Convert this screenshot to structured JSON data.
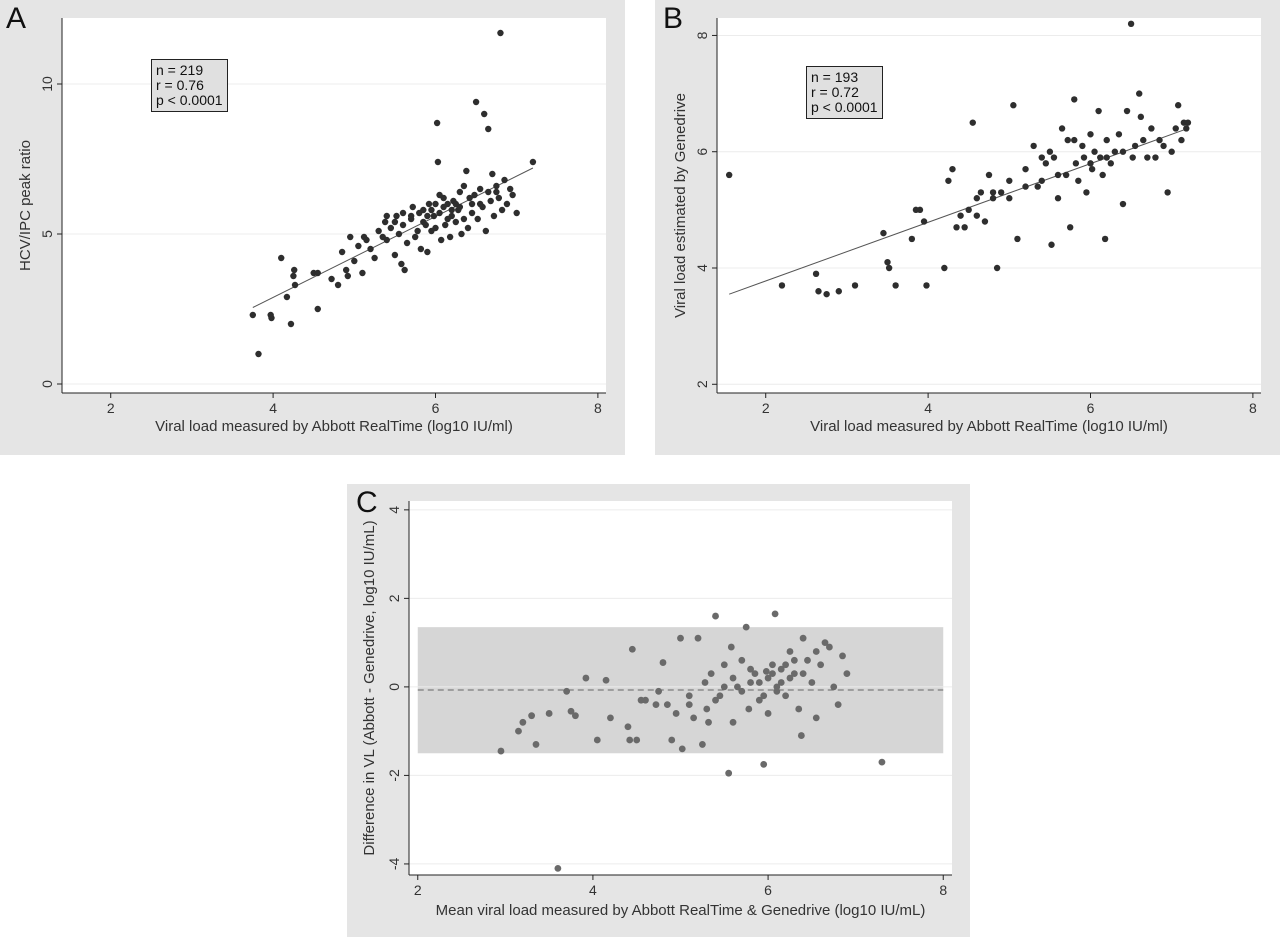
{
  "chart_data": [
    {
      "panel": "A",
      "type": "scatter",
      "title": "",
      "xlabel": "Viral load measured by Abbott RealTime (log10 IU/ml)",
      "ylabel": "HCV/IPC peak ratio",
      "xlim": [
        1.4,
        8.1
      ],
      "ylim": [
        -0.3,
        12.2
      ],
      "xticks": [
        2,
        4,
        6,
        8
      ],
      "yticks": [
        0,
        5,
        10
      ],
      "grid": true,
      "stats": [
        "n = 219",
        "r = 0.76",
        "p < 0.0001"
      ],
      "fit_line": {
        "x": [
          3.75,
          7.2
        ],
        "y": [
          2.55,
          7.2
        ]
      },
      "points": [
        [
          3.75,
          2.3
        ],
        [
          3.82,
          1.0
        ],
        [
          3.97,
          2.3
        ],
        [
          3.98,
          2.2
        ],
        [
          4.1,
          4.2
        ],
        [
          4.17,
          2.9
        ],
        [
          4.22,
          2.0
        ],
        [
          4.25,
          3.6
        ],
        [
          4.26,
          3.8
        ],
        [
          4.27,
          3.3
        ],
        [
          4.5,
          3.7
        ],
        [
          4.55,
          3.7
        ],
        [
          4.55,
          2.5
        ],
        [
          4.72,
          3.5
        ],
        [
          4.8,
          3.3
        ],
        [
          4.85,
          4.4
        ],
        [
          4.9,
          3.8
        ],
        [
          4.92,
          3.6
        ],
        [
          4.95,
          4.9
        ],
        [
          5.0,
          4.1
        ],
        [
          5.05,
          4.6
        ],
        [
          5.1,
          3.7
        ],
        [
          5.12,
          4.9
        ],
        [
          5.15,
          4.8
        ],
        [
          5.2,
          4.5
        ],
        [
          5.25,
          4.2
        ],
        [
          5.3,
          5.1
        ],
        [
          5.35,
          4.9
        ],
        [
          5.38,
          5.4
        ],
        [
          5.4,
          4.8
        ],
        [
          5.45,
          5.2
        ],
        [
          5.5,
          4.3
        ],
        [
          5.52,
          5.6
        ],
        [
          5.55,
          5.0
        ],
        [
          5.58,
          4.0
        ],
        [
          5.6,
          5.3
        ],
        [
          5.62,
          3.8
        ],
        [
          5.65,
          4.7
        ],
        [
          5.7,
          5.5
        ],
        [
          5.72,
          5.9
        ],
        [
          5.75,
          4.9
        ],
        [
          5.78,
          5.1
        ],
        [
          5.8,
          5.7
        ],
        [
          5.82,
          4.5
        ],
        [
          5.85,
          5.8
        ],
        [
          5.88,
          5.3
        ],
        [
          5.9,
          4.4
        ],
        [
          5.92,
          6.0
        ],
        [
          5.95,
          5.1
        ],
        [
          5.98,
          5.6
        ],
        [
          6.0,
          5.2
        ],
        [
          6.02,
          8.7
        ],
        [
          6.03,
          7.4
        ],
        [
          6.05,
          5.7
        ],
        [
          6.07,
          4.8
        ],
        [
          6.1,
          5.9
        ],
        [
          6.12,
          5.3
        ],
        [
          6.15,
          6.0
        ],
        [
          6.18,
          4.9
        ],
        [
          6.2,
          5.6
        ],
        [
          6.22,
          6.1
        ],
        [
          6.25,
          5.4
        ],
        [
          6.28,
          5.8
        ],
        [
          6.3,
          6.4
        ],
        [
          6.32,
          5.0
        ],
        [
          6.35,
          6.6
        ],
        [
          6.38,
          7.1
        ],
        [
          6.4,
          5.2
        ],
        [
          6.42,
          6.2
        ],
        [
          6.45,
          5.7
        ],
        [
          6.48,
          6.3
        ],
        [
          6.5,
          9.4
        ],
        [
          6.52,
          5.5
        ],
        [
          6.55,
          6.5
        ],
        [
          6.58,
          5.9
        ],
        [
          6.6,
          9.0
        ],
        [
          6.62,
          5.1
        ],
        [
          6.65,
          8.5
        ],
        [
          6.68,
          6.1
        ],
        [
          6.7,
          7.0
        ],
        [
          6.72,
          5.6
        ],
        [
          6.75,
          6.6
        ],
        [
          6.78,
          6.2
        ],
        [
          6.8,
          11.7
        ],
        [
          6.82,
          5.8
        ],
        [
          6.85,
          6.8
        ],
        [
          6.88,
          6.0
        ],
        [
          6.92,
          6.5
        ],
        [
          6.95,
          6.3
        ],
        [
          7.0,
          5.7
        ],
        [
          7.2,
          7.4
        ],
        [
          5.9,
          5.6
        ],
        [
          6.0,
          6.0
        ],
        [
          6.1,
          6.2
        ],
        [
          6.2,
          5.8
        ],
        [
          6.3,
          5.9
        ],
        [
          5.7,
          5.6
        ],
        [
          5.6,
          5.7
        ],
        [
          5.5,
          5.4
        ],
        [
          5.4,
          5.6
        ],
        [
          6.05,
          6.3
        ],
        [
          6.15,
          5.5
        ],
        [
          6.25,
          6.0
        ],
        [
          6.35,
          5.5
        ],
        [
          5.85,
          5.4
        ],
        [
          5.95,
          5.8
        ],
        [
          6.45,
          6.0
        ],
        [
          6.55,
          6.0
        ],
        [
          6.65,
          6.4
        ],
        [
          6.75,
          6.4
        ]
      ]
    },
    {
      "panel": "B",
      "type": "scatter",
      "title": "",
      "xlabel": "Viral load measured by Abbott RealTime (log10 IU/ml)",
      "ylabel": "Viral load estimated by Genedrive",
      "xlim": [
        1.4,
        8.1
      ],
      "ylim": [
        1.85,
        8.3
      ],
      "xticks": [
        2,
        4,
        6,
        8
      ],
      "yticks": [
        2,
        4,
        6,
        8
      ],
      "grid": true,
      "stats": [
        "n = 193",
        "r = 0.72",
        "p < 0.0001"
      ],
      "fit_line": {
        "x": [
          1.55,
          7.2
        ],
        "y": [
          3.55,
          6.4
        ]
      },
      "points": [
        [
          1.55,
          5.6
        ],
        [
          2.2,
          3.7
        ],
        [
          2.62,
          3.9
        ],
        [
          2.65,
          3.6
        ],
        [
          2.75,
          3.55
        ],
        [
          2.9,
          3.6
        ],
        [
          3.1,
          3.7
        ],
        [
          3.45,
          4.6
        ],
        [
          3.5,
          4.1
        ],
        [
          3.52,
          4.0
        ],
        [
          3.6,
          3.7
        ],
        [
          3.8,
          4.5
        ],
        [
          3.85,
          5.0
        ],
        [
          3.9,
          5.0
        ],
        [
          3.95,
          4.8
        ],
        [
          3.98,
          3.7
        ],
        [
          4.2,
          4.0
        ],
        [
          4.25,
          5.5
        ],
        [
          4.3,
          5.7
        ],
        [
          4.35,
          4.7
        ],
        [
          4.4,
          4.9
        ],
        [
          4.45,
          4.7
        ],
        [
          4.5,
          5.0
        ],
        [
          4.55,
          6.5
        ],
        [
          4.6,
          5.2
        ],
        [
          4.65,
          5.3
        ],
        [
          4.7,
          4.8
        ],
        [
          4.75,
          5.6
        ],
        [
          4.8,
          5.2
        ],
        [
          4.85,
          4.0
        ],
        [
          4.9,
          5.3
        ],
        [
          5.0,
          5.2
        ],
        [
          5.05,
          6.8
        ],
        [
          5.1,
          4.5
        ],
        [
          5.2,
          5.7
        ],
        [
          5.3,
          6.1
        ],
        [
          5.35,
          5.4
        ],
        [
          5.4,
          5.5
        ],
        [
          5.45,
          5.8
        ],
        [
          5.5,
          6.0
        ],
        [
          5.52,
          4.4
        ],
        [
          5.55,
          5.9
        ],
        [
          5.6,
          5.2
        ],
        [
          5.65,
          6.4
        ],
        [
          5.7,
          5.6
        ],
        [
          5.72,
          6.2
        ],
        [
          5.75,
          4.7
        ],
        [
          5.8,
          6.9
        ],
        [
          5.82,
          5.8
        ],
        [
          5.85,
          5.5
        ],
        [
          5.9,
          6.1
        ],
        [
          5.92,
          5.9
        ],
        [
          5.95,
          5.3
        ],
        [
          6.0,
          6.3
        ],
        [
          6.02,
          5.7
        ],
        [
          6.05,
          6.0
        ],
        [
          6.1,
          6.7
        ],
        [
          6.12,
          5.9
        ],
        [
          6.15,
          5.6
        ],
        [
          6.18,
          4.5
        ],
        [
          6.2,
          6.2
        ],
        [
          6.25,
          5.8
        ],
        [
          6.3,
          6.0
        ],
        [
          6.35,
          6.3
        ],
        [
          6.4,
          5.1
        ],
        [
          6.45,
          6.7
        ],
        [
          6.5,
          8.2
        ],
        [
          6.52,
          5.9
        ],
        [
          6.55,
          6.1
        ],
        [
          6.6,
          7.0
        ],
        [
          6.62,
          6.6
        ],
        [
          6.65,
          6.2
        ],
        [
          6.7,
          5.9
        ],
        [
          6.75,
          6.4
        ],
        [
          6.8,
          5.9
        ],
        [
          6.85,
          6.2
        ],
        [
          6.9,
          6.1
        ],
        [
          6.95,
          5.3
        ],
        [
          7.0,
          6.0
        ],
        [
          7.05,
          6.4
        ],
        [
          7.08,
          6.8
        ],
        [
          7.12,
          6.2
        ],
        [
          7.15,
          6.5
        ],
        [
          7.18,
          6.4
        ],
        [
          7.2,
          6.5
        ],
        [
          5.0,
          5.5
        ],
        [
          5.2,
          5.4
        ],
        [
          5.4,
          5.9
        ],
        [
          5.6,
          5.6
        ],
        [
          5.8,
          6.2
        ],
        [
          6.0,
          5.8
        ],
        [
          6.2,
          5.9
        ],
        [
          6.4,
          6.0
        ],
        [
          4.6,
          4.9
        ],
        [
          4.8,
          5.3
        ]
      ]
    },
    {
      "panel": "C",
      "type": "scatter",
      "title": "",
      "xlabel": "Mean viral load measured by Abbott RealTime & Genedrive (log10 IU/mL)",
      "ylabel": "Difference in VL (Abbott - Genedrive, log10 IU/mL)",
      "xlim": [
        1.9,
        8.1
      ],
      "ylim": [
        -4.25,
        4.2
      ],
      "xticks": [
        2,
        4,
        6,
        8
      ],
      "yticks": [
        -4,
        -2,
        0,
        2,
        4
      ],
      "grid": true,
      "limits_of_agreement": [
        -1.5,
        1.35
      ],
      "mean_difference": -0.07,
      "points": [
        [
          2.95,
          -1.45
        ],
        [
          3.15,
          -1.0
        ],
        [
          3.2,
          -0.8
        ],
        [
          3.3,
          -0.65
        ],
        [
          3.35,
          -1.3
        ],
        [
          3.5,
          -0.6
        ],
        [
          3.6,
          -4.1
        ],
        [
          3.7,
          -0.1
        ],
        [
          3.75,
          -0.55
        ],
        [
          3.8,
          -0.65
        ],
        [
          3.92,
          0.2
        ],
        [
          4.05,
          -1.2
        ],
        [
          4.15,
          0.15
        ],
        [
          4.2,
          -0.7
        ],
        [
          4.4,
          -0.9
        ],
        [
          4.42,
          -1.2
        ],
        [
          4.45,
          0.85
        ],
        [
          4.5,
          -1.2
        ],
        [
          4.55,
          -0.3
        ],
        [
          4.6,
          -0.3
        ],
        [
          4.72,
          -0.4
        ],
        [
          4.75,
          -0.1
        ],
        [
          4.8,
          0.55
        ],
        [
          4.85,
          -0.4
        ],
        [
          4.9,
          -1.2
        ],
        [
          4.95,
          -0.6
        ],
        [
          5.0,
          1.1
        ],
        [
          5.02,
          -1.4
        ],
        [
          5.1,
          -0.2
        ],
        [
          5.15,
          -0.7
        ],
        [
          5.2,
          1.1
        ],
        [
          5.25,
          -1.3
        ],
        [
          5.28,
          0.1
        ],
        [
          5.32,
          -0.8
        ],
        [
          5.35,
          0.3
        ],
        [
          5.4,
          1.6
        ],
        [
          5.45,
          -0.2
        ],
        [
          5.5,
          0.5
        ],
        [
          5.55,
          -1.95
        ],
        [
          5.58,
          0.9
        ],
        [
          5.6,
          -0.8
        ],
        [
          5.65,
          0.0
        ],
        [
          5.7,
          0.6
        ],
        [
          5.75,
          1.35
        ],
        [
          5.78,
          -0.5
        ],
        [
          5.8,
          0.1
        ],
        [
          5.85,
          0.3
        ],
        [
          5.9,
          -0.3
        ],
        [
          5.95,
          -1.75
        ],
        [
          5.98,
          0.35
        ],
        [
          6.0,
          -0.6
        ],
        [
          6.05,
          0.5
        ],
        [
          6.08,
          1.65
        ],
        [
          6.1,
          0.0
        ],
        [
          6.15,
          0.4
        ],
        [
          6.2,
          -0.2
        ],
        [
          6.25,
          0.8
        ],
        [
          6.3,
          0.3
        ],
        [
          6.35,
          -0.5
        ],
        [
          6.38,
          -1.1
        ],
        [
          6.4,
          1.1
        ],
        [
          6.45,
          0.6
        ],
        [
          6.5,
          0.1
        ],
        [
          6.55,
          -0.7
        ],
        [
          6.6,
          0.5
        ],
        [
          6.65,
          1.0
        ],
        [
          6.7,
          0.9
        ],
        [
          6.75,
          0.0
        ],
        [
          6.8,
          -0.4
        ],
        [
          6.85,
          0.7
        ],
        [
          6.9,
          0.3
        ],
        [
          7.3,
          -1.7
        ],
        [
          5.9,
          0.1
        ],
        [
          6.0,
          0.2
        ],
        [
          6.1,
          -0.1
        ],
        [
          5.7,
          -0.1
        ],
        [
          5.5,
          0.0
        ],
        [
          6.2,
          0.5
        ],
        [
          6.3,
          0.6
        ],
        [
          5.8,
          0.4
        ],
        [
          5.6,
          0.2
        ],
        [
          6.4,
          0.3
        ],
        [
          5.4,
          -0.3
        ],
        [
          6.55,
          0.8
        ],
        [
          6.15,
          0.1
        ],
        [
          5.95,
          -0.2
        ],
        [
          5.3,
          -0.5
        ],
        [
          5.1,
          -0.4
        ],
        [
          6.05,
          0.3
        ],
        [
          6.25,
          0.2
        ]
      ]
    }
  ]
}
